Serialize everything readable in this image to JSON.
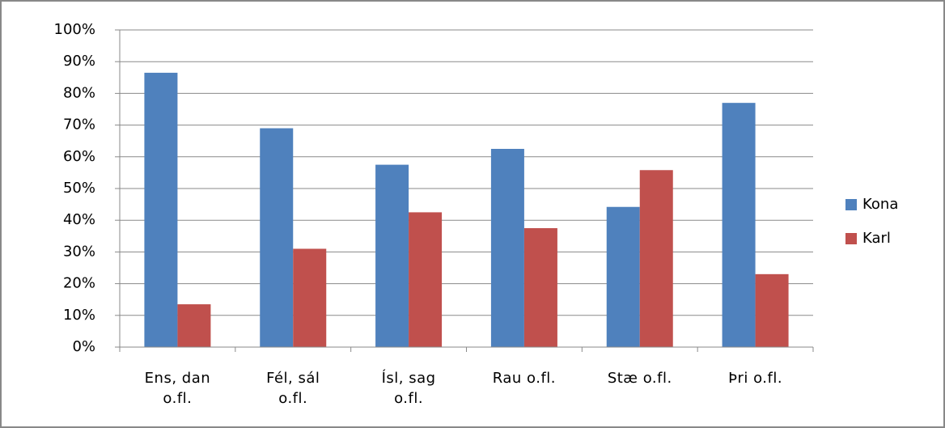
{
  "chart_data": {
    "type": "bar",
    "categories": [
      "Ens, dan\no.fl.",
      "Fél, sál\no.fl.",
      "Ísl, sag\no.fl.",
      "Rau o.fl.",
      "Stæ o.fl.",
      "Þri o.fl."
    ],
    "series": [
      {
        "name": "Kona",
        "color": "#4f81bd",
        "values": [
          86.5,
          69,
          57.5,
          62.5,
          44.2,
          77
        ]
      },
      {
        "name": "Karl",
        "color": "#c0504d",
        "values": [
          13.5,
          31,
          42.5,
          37.5,
          55.8,
          23
        ]
      }
    ],
    "ylim": [
      0,
      100
    ],
    "yticks": [
      {
        "value": 0,
        "label": "0%"
      },
      {
        "value": 10,
        "label": "10%"
      },
      {
        "value": 20,
        "label": "20%"
      },
      {
        "value": 30,
        "label": "30%"
      },
      {
        "value": 40,
        "label": "40%"
      },
      {
        "value": 50,
        "label": "50%"
      },
      {
        "value": 60,
        "label": "60%"
      },
      {
        "value": 70,
        "label": "70%"
      },
      {
        "value": 80,
        "label": "80%"
      },
      {
        "value": 90,
        "label": "90%"
      },
      {
        "value": 100,
        "label": "100%"
      }
    ],
    "grid": true,
    "legend": "right"
  }
}
